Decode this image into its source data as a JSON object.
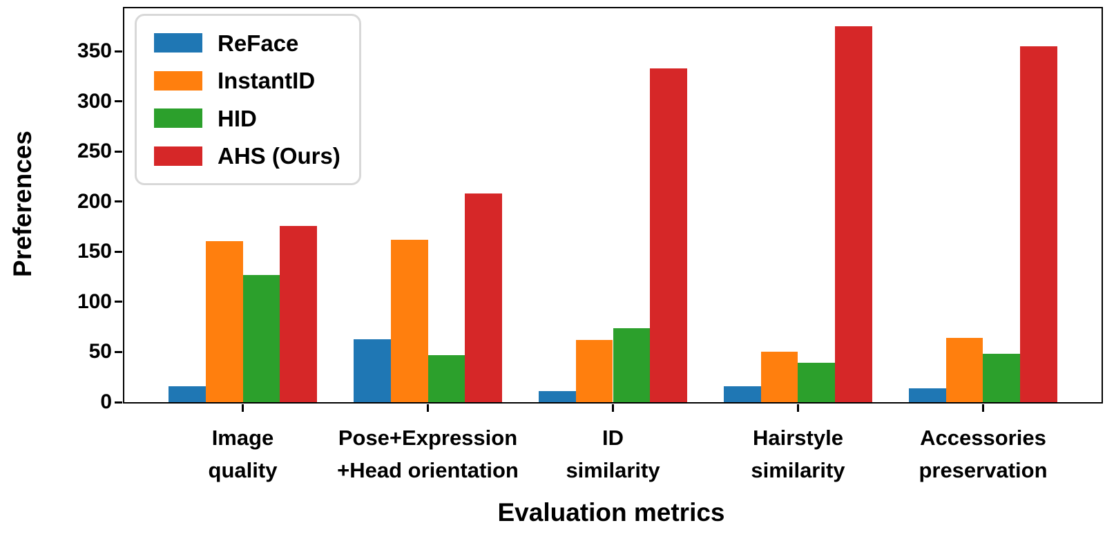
{
  "chart_data": {
    "type": "bar",
    "title": "",
    "xlabel": "Evaluation metrics",
    "ylabel": "Preferences",
    "categories": [
      "Image\nquality",
      "Pose+Expression\n+Head orientation",
      "ID\nsimilarity",
      "Hairstyle\nsimilarity",
      "Accessories\npreservation"
    ],
    "series": [
      {
        "name": "ReFace",
        "color": "#1f77b4",
        "values": [
          16,
          63,
          11,
          16,
          14
        ]
      },
      {
        "name": "InstantID",
        "color": "#ff7f0e",
        "values": [
          161,
          162,
          62,
          50,
          64
        ]
      },
      {
        "name": "HID",
        "color": "#2ca02c",
        "values": [
          127,
          47,
          74,
          39,
          48
        ]
      },
      {
        "name": "AHS (Ours)",
        "color": "#d62728",
        "values": [
          176,
          208,
          333,
          375,
          355
        ]
      }
    ],
    "yticks": [
      0,
      50,
      100,
      150,
      200,
      250,
      300,
      350
    ],
    "ylim": [
      0,
      393
    ],
    "bar_group_width": 0.8,
    "legend_position": "upper left",
    "grid": false,
    "text_color": "#000000",
    "spine_color": "#000000",
    "legend_border_color": "#d8d8d8"
  }
}
